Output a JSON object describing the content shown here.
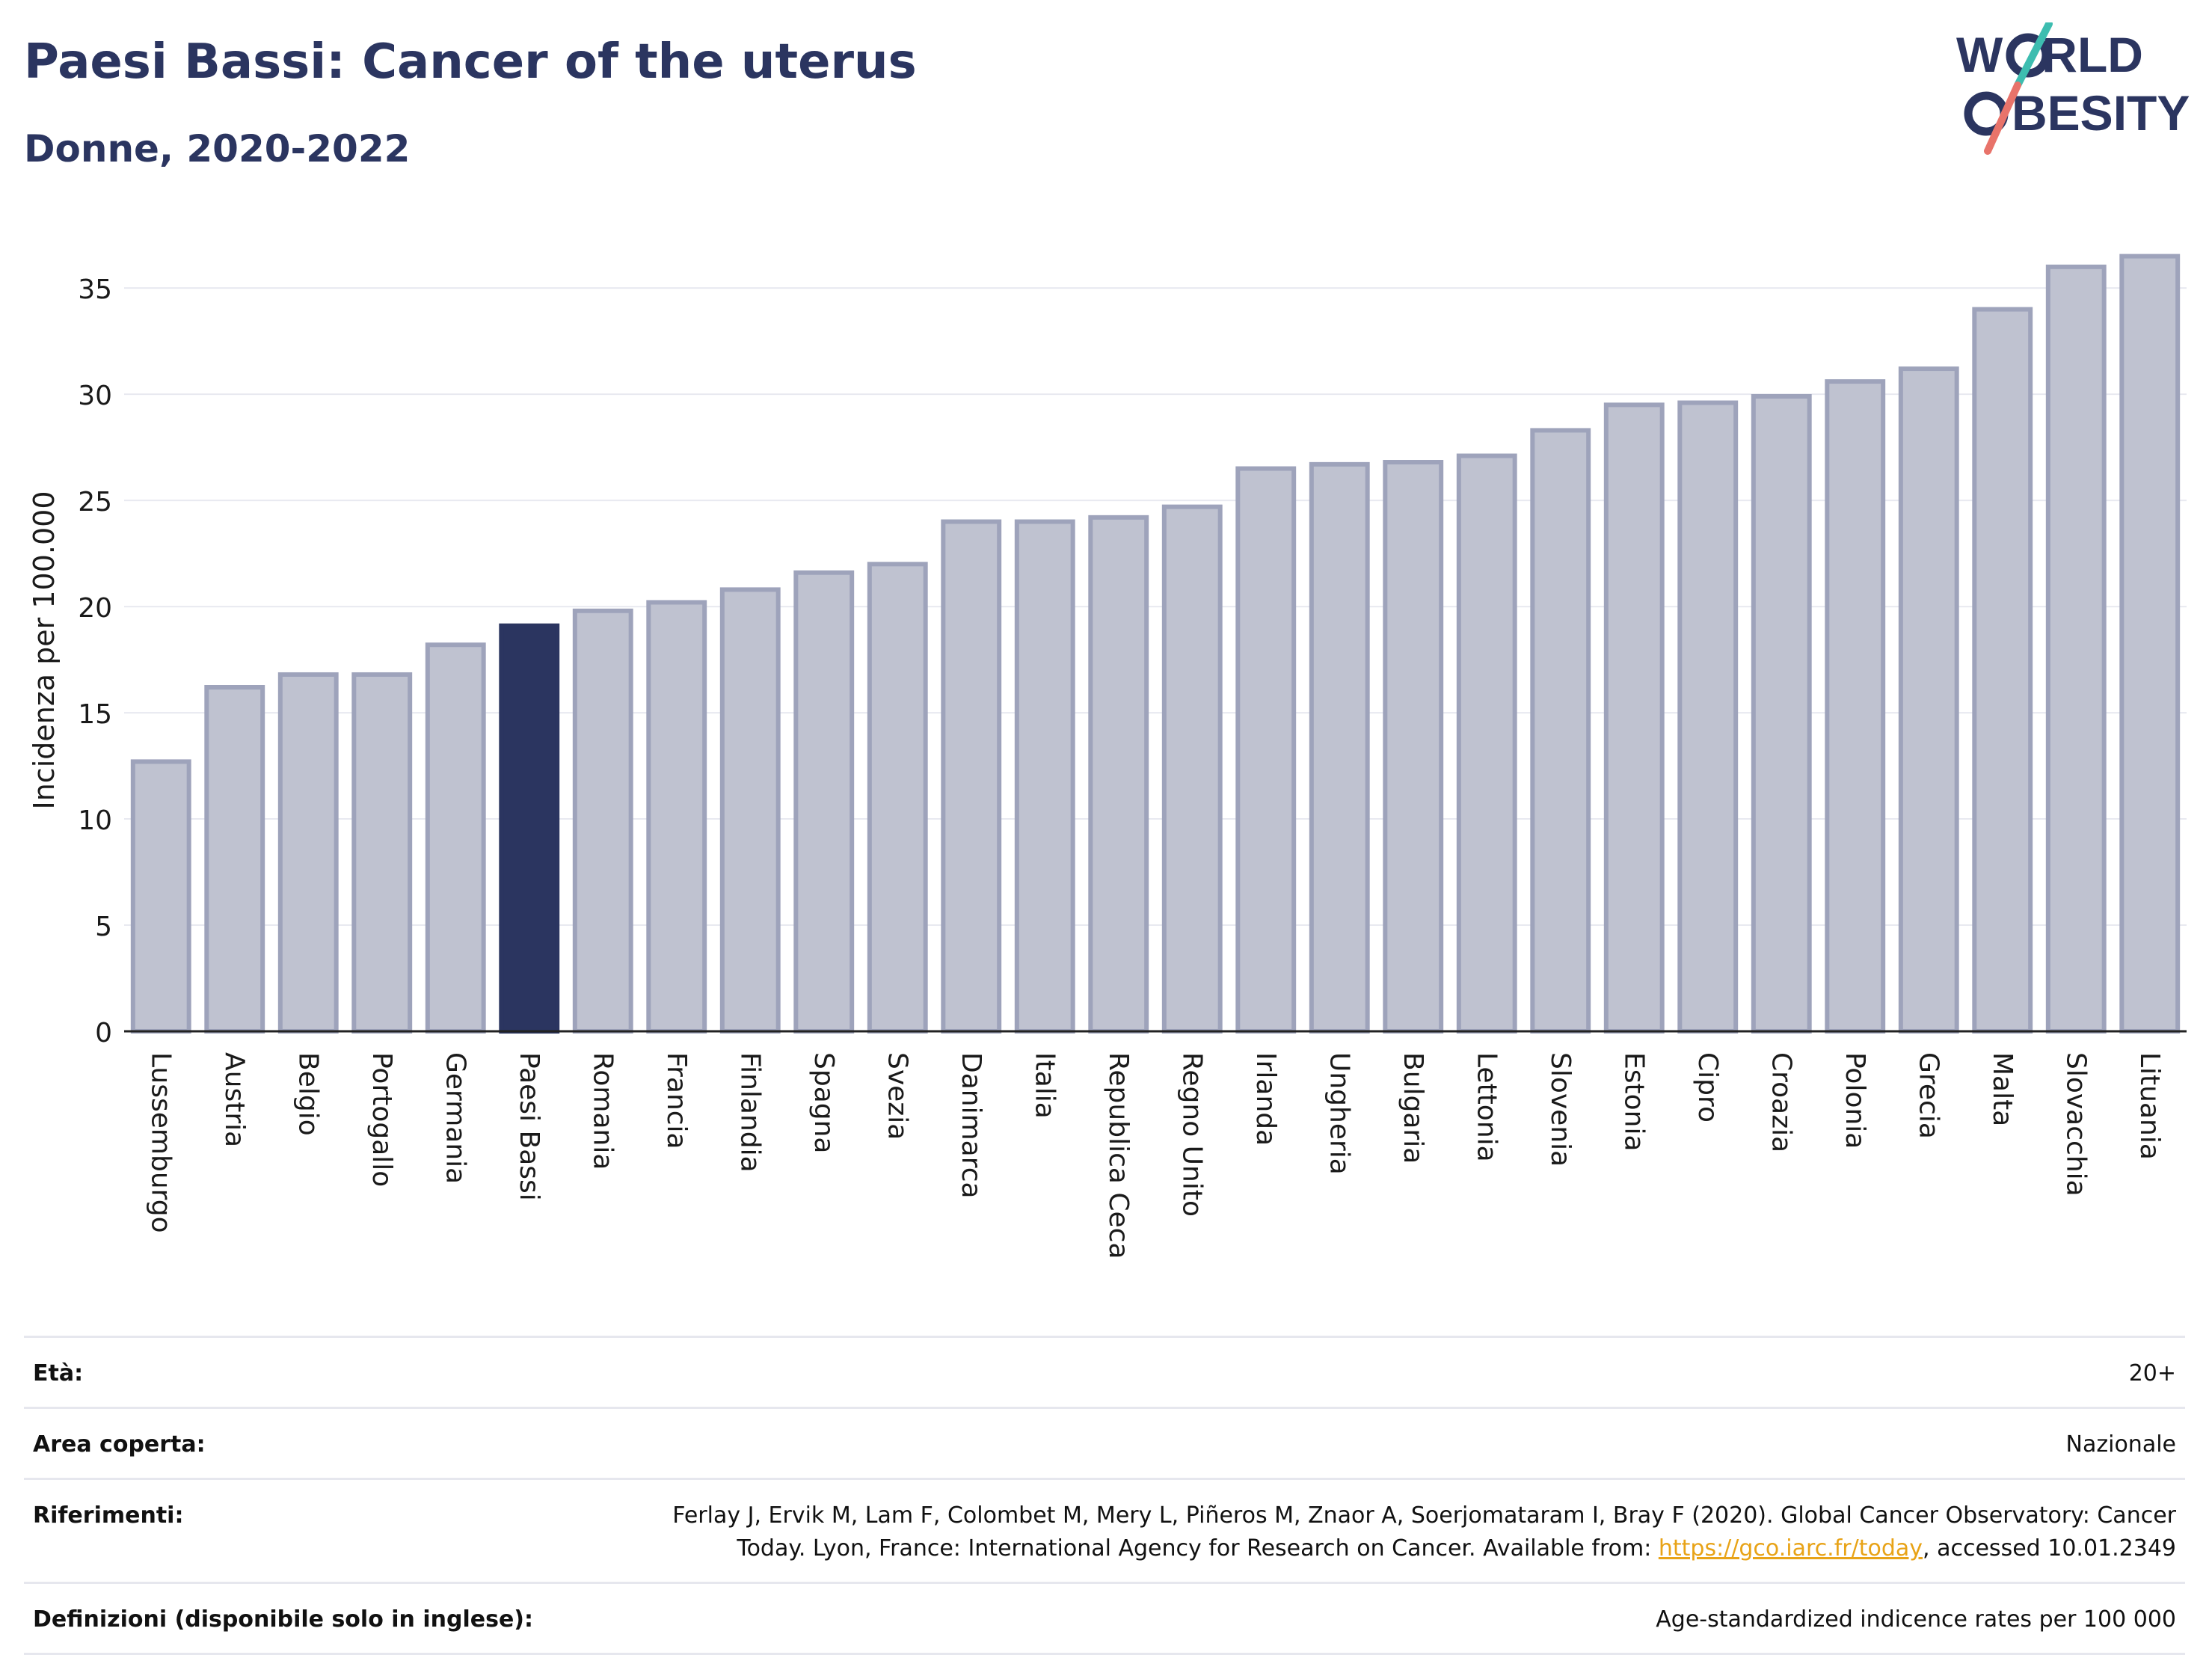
{
  "header": {
    "title": "Paesi Bassi: Cancer of the uterus",
    "subtitle": "Donne, 2020-2022"
  },
  "logo": {
    "line1": "W",
    "line1_rest": "RLD",
    "line2_rest": "BESITY",
    "brand_text": "WORLD OBESITY",
    "colors": {
      "text": "#2b3560",
      "slash_teal": "#3dbdb0",
      "slash_coral": "#e8736a"
    }
  },
  "chart_data": {
    "type": "bar",
    "ylabel": "Incidenza per 100.000",
    "ylim": [
      0,
      38
    ],
    "yticks": [
      0,
      5,
      10,
      15,
      20,
      25,
      30,
      35
    ],
    "grid": true,
    "highlight": "Paesi Bassi",
    "colors": {
      "bar": "#bfc2d0",
      "bar_border": "#9ea3bb",
      "highlight": "#2b3560",
      "axis": "#222222",
      "grid": "#e8e9f0"
    },
    "categories": [
      "Lussemburgo",
      "Austria",
      "Belgio",
      "Portogallo",
      "Germania",
      "Paesi Bassi",
      "Romania",
      "Francia",
      "Finlandia",
      "Spagna",
      "Svezia",
      "Danimarca",
      "Italia",
      "Republica Ceca",
      "Regno Unito",
      "Irlanda",
      "Ungheria",
      "Bulgaria",
      "Lettonia",
      "Slovenia",
      "Estonia",
      "Cipro",
      "Croazia",
      "Polonia",
      "Grecia",
      "Malta",
      "Slovacchia",
      "Lituania"
    ],
    "values": [
      12.7,
      16.2,
      16.8,
      16.8,
      18.2,
      19.1,
      19.8,
      20.2,
      20.8,
      21.6,
      22.0,
      24.0,
      24.0,
      24.2,
      24.7,
      26.5,
      26.7,
      26.8,
      27.1,
      28.3,
      29.5,
      29.6,
      29.9,
      30.6,
      31.2,
      34.0,
      36.0,
      36.5
    ]
  },
  "info": {
    "age_label": "Età:",
    "age_value": "20+",
    "area_label": "Area coperta:",
    "area_value": "Nazionale",
    "ref_label": "Riferimenti:",
    "ref_line1": "Ferlay J, Ervik M, Lam F, Colombet M, Mery L, Piñeros M, Znaor A, Soerjomataram I, Bray F (2020). Global Cancer Observatory: Cancer",
    "ref_line2_prefix": "Today. Lyon, France: International Agency for Research on Cancer. Available from: ",
    "ref_link": "https://gco.iarc.fr/today",
    "ref_line2_suffix": ", accessed 10.01.2349",
    "def_label": "Definizioni (disponibile solo in inglese):",
    "def_value": "Age-standardized indicence rates per 100 000"
  }
}
